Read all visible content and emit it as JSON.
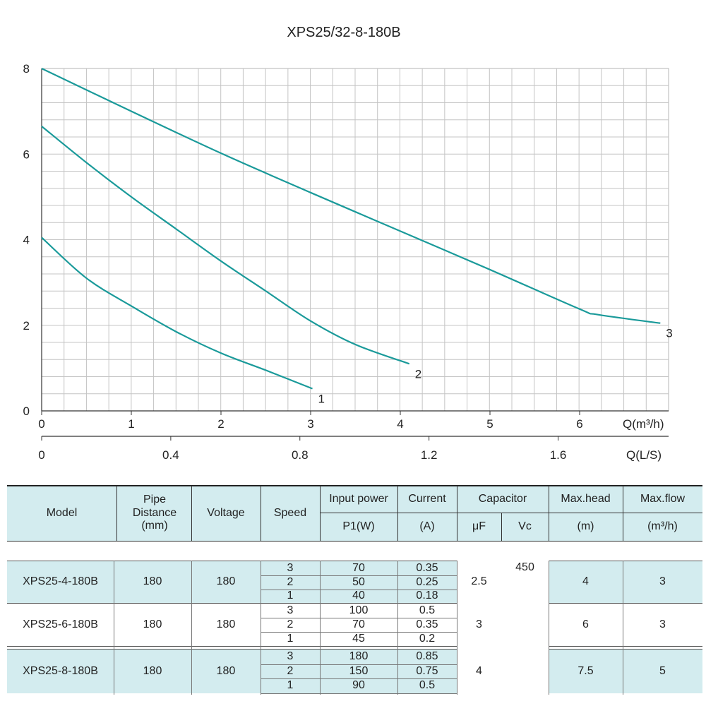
{
  "chart_data": {
    "type": "line",
    "title": "XPS25/32-8-180B",
    "xlabel": "Q(m³/h)",
    "xlabel2": "Q(L/S)",
    "ylabel": "",
    "xlim": [
      0,
      7
    ],
    "ylim": [
      0,
      8
    ],
    "x_ticks": [
      0,
      1,
      2,
      3,
      4,
      5,
      6
    ],
    "x2_ticks": [
      0,
      0.4,
      0.8,
      1.2,
      1.6
    ],
    "y_ticks": [
      0,
      2,
      4,
      6,
      8
    ],
    "grid": true,
    "line_color": "#1a9a9a",
    "series": [
      {
        "name": "1",
        "x": [
          0,
          0.5,
          1,
          1.5,
          2,
          2.5,
          3.02
        ],
        "y": [
          4.05,
          3.1,
          2.45,
          1.85,
          1.35,
          0.95,
          0.52
        ]
      },
      {
        "name": "2",
        "x": [
          0,
          0.5,
          1,
          1.5,
          2,
          2.5,
          3,
          3.5,
          4.1
        ],
        "y": [
          6.65,
          5.8,
          5.0,
          4.25,
          3.5,
          2.8,
          2.1,
          1.55,
          1.1
        ]
      },
      {
        "name": "3",
        "x": [
          0,
          1,
          2,
          3,
          4,
          5,
          6,
          6.2,
          6.9
        ],
        "y": [
          8.0,
          7.0,
          6.02,
          5.1,
          4.2,
          3.3,
          2.38,
          2.25,
          2.05
        ]
      }
    ]
  },
  "table": {
    "headers": {
      "model": "Model",
      "pipe_distance": "Pipe Distance (mm)",
      "voltage": "Voltage",
      "speed": "Speed",
      "input_power": "Input power",
      "p1": "P1(W)",
      "current": "Current",
      "current_unit": "(A)",
      "capacitor": "Capacitor",
      "uf": "μF",
      "vc": "Vc",
      "max_head": "Max.head",
      "max_head_unit": "(m)",
      "max_flow": "Max.flow",
      "max_flow_unit": "(m³/h)"
    },
    "vc_value": "450",
    "models": [
      {
        "name": "XPS25-4-180B",
        "pipe": "180",
        "voltage": "180",
        "uf": "2.5",
        "max_head": "4",
        "max_flow": "3",
        "rows": [
          {
            "speed": "3",
            "power": "70",
            "current": "0.35"
          },
          {
            "speed": "2",
            "power": "50",
            "current": "0.25"
          },
          {
            "speed": "1",
            "power": "40",
            "current": "0.18"
          }
        ]
      },
      {
        "name": "XPS25-6-180B",
        "pipe": "180",
        "voltage": "180",
        "uf": "3",
        "max_head": "6",
        "max_flow": "3",
        "rows": [
          {
            "speed": "3",
            "power": "100",
            "current": "0.5"
          },
          {
            "speed": "2",
            "power": "70",
            "current": "0.35"
          },
          {
            "speed": "1",
            "power": "45",
            "current": "0.2"
          }
        ]
      },
      {
        "name": "XPS25-8-180B",
        "pipe": "180",
        "voltage": "180",
        "uf": "4",
        "max_head": "7.5",
        "max_flow": "5",
        "rows": [
          {
            "speed": "3",
            "power": "180",
            "current": "0.85"
          },
          {
            "speed": "2",
            "power": "150",
            "current": "0.75"
          },
          {
            "speed": "1",
            "power": "90",
            "current": "0.5"
          }
        ]
      }
    ]
  }
}
